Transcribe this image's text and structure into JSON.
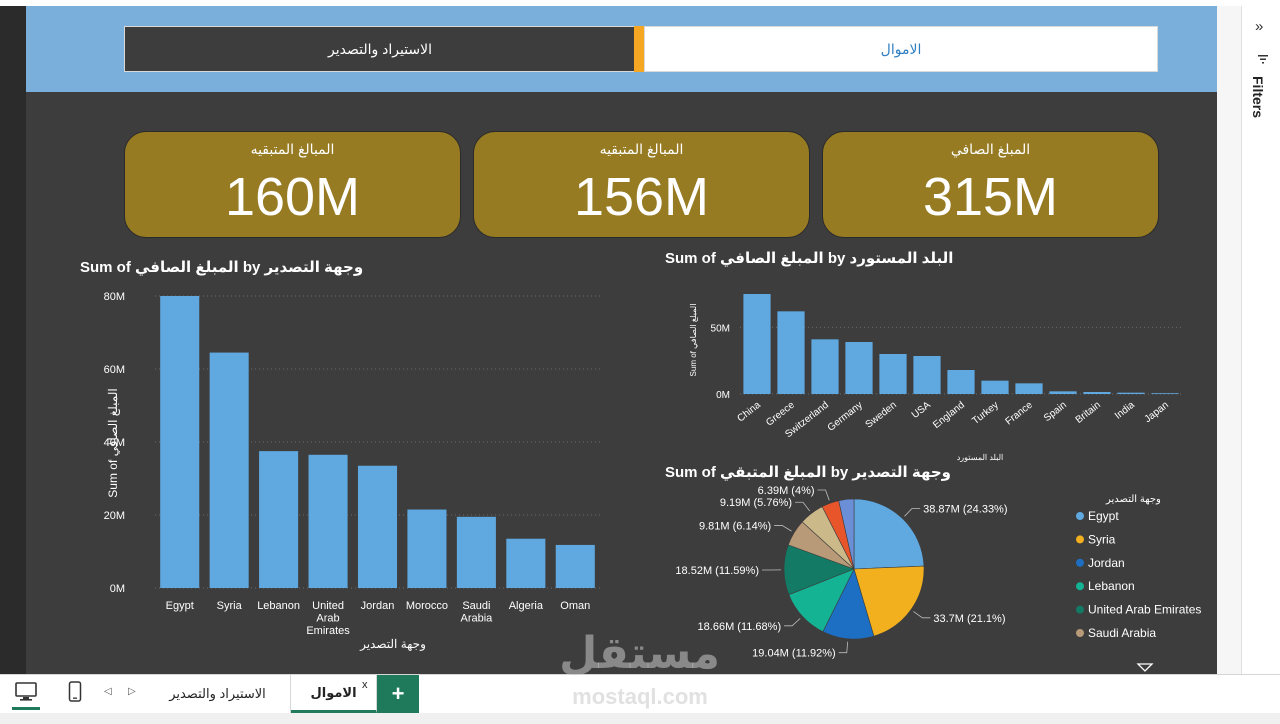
{
  "header": {
    "tab_import_export": "الاستيراد والتصدير",
    "tab_amwal": "الاموال"
  },
  "kpis": [
    {
      "label": "المبالغ المتبقيه",
      "value": "160M"
    },
    {
      "label": "المبالغ المتبقيه",
      "value": "156M"
    },
    {
      "label": "المبلغ الصافي",
      "value": "315M"
    }
  ],
  "filters": {
    "label": "Filters",
    "collapse_glyph": "»"
  },
  "bottom_bar": {
    "page_tab_import": "الاستيراد والتصدير",
    "page_tab_amwal": "الاموال",
    "close_glyph": "x",
    "add_glyph": "+",
    "prev_glyph": "◁",
    "next_glyph": "▷"
  },
  "watermark": {
    "word": "مستقل",
    "latin": "mostaql.com"
  },
  "colors": {
    "accent": "#f5a623",
    "kpi": "#967b23",
    "bar": "#5fa8e0",
    "header_band": "#7aaedb",
    "canvas": "#3d3d3d",
    "page_add": "#1e7a5a"
  },
  "chart_data": [
    {
      "id": "export-destinations",
      "type": "bar",
      "title": "Sum of المبلغ الصافي by وجهة التصدير",
      "xlabel": "وجهة التصدير",
      "ylabel": "Sum of المبلغ الصافي",
      "categories": [
        "Egypt",
        "Syria",
        "Lebanon",
        "United Arab Emirates",
        "Jordan",
        "Morocco",
        "Saudi Arabia",
        "Algeria",
        "Oman"
      ],
      "values": [
        80,
        64.5,
        37.5,
        36.5,
        33.5,
        21.5,
        19.5,
        13.5,
        11.8
      ],
      "value_unit": "M",
      "ylim": [
        0,
        80
      ],
      "yticks": [
        0,
        20,
        40,
        60,
        80
      ],
      "ytick_labels": [
        "0M",
        "20M",
        "40M",
        "60M",
        "80M"
      ],
      "grid": true,
      "color": "#5fa8e0"
    },
    {
      "id": "importing-countries",
      "type": "bar",
      "title": "Sum of المبلغ الصافي by البلد المستورد",
      "xlabel": "البلد المستورد",
      "ylabel": "Sum of المبلغ الصافي",
      "categories": [
        "China",
        "Greece",
        "Switzerland",
        "Germany",
        "Sweden",
        "USA",
        "England",
        "Turkey",
        "France",
        "Spain",
        "Britain",
        "India",
        "Japan"
      ],
      "values": [
        75,
        62,
        41,
        39,
        30,
        28.5,
        18,
        10,
        8,
        2,
        1.5,
        1,
        0.6
      ],
      "value_unit": "M",
      "ylim": [
        0,
        78
      ],
      "yticks": [
        0,
        50
      ],
      "ytick_labels": [
        "0M",
        "50M"
      ],
      "grid": true,
      "color": "#5fa8e0"
    },
    {
      "id": "remaining-by-destination",
      "type": "pie",
      "title": "Sum of المبلغ المتبقي by وجهة التصدير",
      "legend_title": "وجهة التصدير",
      "legend_position": "right",
      "slices": [
        {
          "name": "Egypt",
          "value": 38.87,
          "label": "38.87M (24.33%)",
          "color": "#5fa8e0"
        },
        {
          "name": "Syria",
          "value": 33.7,
          "label": "33.7M (21.1%)",
          "color": "#f2b01e"
        },
        {
          "name": "Jordan",
          "value": 19.04,
          "label": "19.04M (11.92%)",
          "color": "#1d6fc4"
        },
        {
          "name": "Lebanon",
          "value": 18.66,
          "label": "18.66M (11.68%)",
          "color": "#14b394"
        },
        {
          "name": "United Arab Emirates",
          "value": 18.52,
          "label": "18.52M (11.59%)",
          "color": "#127a65"
        },
        {
          "name": "Saudi Arabia",
          "value": 9.81,
          "label": "9.81M (6.14%)",
          "color": "#b89a78"
        },
        {
          "name": "",
          "value": 9.19,
          "label": "9.19M (5.76%)",
          "color": "#ccb98a"
        },
        {
          "name": "",
          "value": 6.39,
          "label": "6.39M (4%)",
          "color": "#e8552b"
        },
        {
          "name": "",
          "value": 5.6,
          "label": "",
          "color": "#6b8fd6"
        }
      ]
    }
  ]
}
